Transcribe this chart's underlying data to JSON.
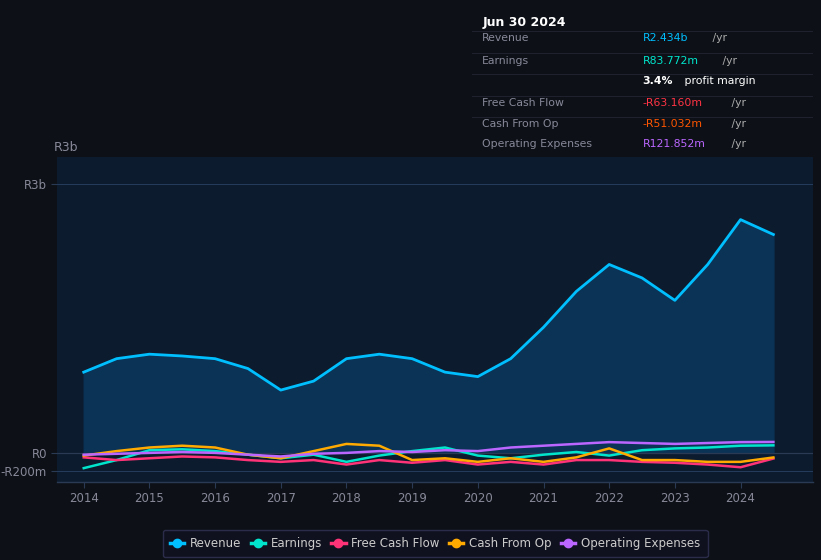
{
  "background_color": "#0d1117",
  "plot_bg_color": "#0d1b2e",
  "grid_color": "#253d5e",
  "years": [
    2014,
    2014.5,
    2015,
    2015.5,
    2016,
    2016.5,
    2017,
    2017.5,
    2018,
    2018.5,
    2019,
    2019.5,
    2020,
    2020.5,
    2021,
    2021.5,
    2022,
    2022.5,
    2023,
    2023.5,
    2024,
    2024.5
  ],
  "revenue": [
    900,
    1050,
    1100,
    1080,
    1050,
    940,
    700,
    800,
    1050,
    1100,
    1050,
    900,
    850,
    1050,
    1400,
    1800,
    2100,
    1950,
    1700,
    2100,
    2600,
    2434
  ],
  "earnings": [
    -170,
    -80,
    30,
    40,
    20,
    -20,
    -60,
    -20,
    -100,
    -30,
    20,
    60,
    -30,
    -60,
    -20,
    10,
    -30,
    30,
    50,
    60,
    80,
    84
  ],
  "free_cash_flow": [
    -50,
    -80,
    -60,
    -40,
    -50,
    -80,
    -100,
    -80,
    -130,
    -80,
    -110,
    -80,
    -130,
    -100,
    -130,
    -80,
    -80,
    -100,
    -110,
    -130,
    -160,
    -63
  ],
  "cash_from_op": [
    -30,
    20,
    60,
    80,
    60,
    -20,
    -60,
    20,
    100,
    80,
    -80,
    -60,
    -100,
    -60,
    -100,
    -50,
    50,
    -80,
    -80,
    -100,
    -100,
    -51
  ],
  "operating_expenses": [
    -20,
    -10,
    0,
    10,
    0,
    -20,
    -40,
    -10,
    0,
    20,
    10,
    30,
    20,
    60,
    80,
    100,
    120,
    110,
    100,
    110,
    120,
    122
  ],
  "revenue_color": "#00bfff",
  "revenue_fill_color": "#0a3356",
  "earnings_color": "#00e5cc",
  "fcf_color": "#ff3377",
  "cfo_color": "#ffaa00",
  "opex_color": "#bb66ff",
  "info_box_bg": "#000000",
  "info_box_border": "#2a2a3a",
  "info_box_title_color": "#ffffff",
  "info_box_label_color": "#888899",
  "revenue_val_color": "#00bfff",
  "earnings_val_color": "#00e5cc",
  "margin_color": "#ffffff",
  "fcf_val_color": "#ff3344",
  "cfo_val_color": "#ff5500",
  "opex_val_color": "#bb66ff",
  "legend_bg": "#111122",
  "legend_border": "#333355",
  "legend_text_color": "#cccccc",
  "axis_label_color": "#888899",
  "spine_color": "#2a3a55",
  "ytick_labels": [
    "-R200m",
    "R0",
    "R3b"
  ],
  "ytick_values": [
    -0.2,
    0.0,
    3.0
  ],
  "xlim_left": 2013.6,
  "xlim_right": 2025.1,
  "ylim_bottom": -0.32,
  "ylim_top": 3.3,
  "xticks": [
    2014,
    2015,
    2016,
    2017,
    2018,
    2019,
    2020,
    2021,
    2022,
    2023,
    2024
  ],
  "legend": [
    {
      "label": "Revenue",
      "color": "#00bfff"
    },
    {
      "label": "Earnings",
      "color": "#00e5cc"
    },
    {
      "label": "Free Cash Flow",
      "color": "#ff3377"
    },
    {
      "label": "Cash From Op",
      "color": "#ffaa00"
    },
    {
      "label": "Operating Expenses",
      "color": "#bb66ff"
    }
  ]
}
